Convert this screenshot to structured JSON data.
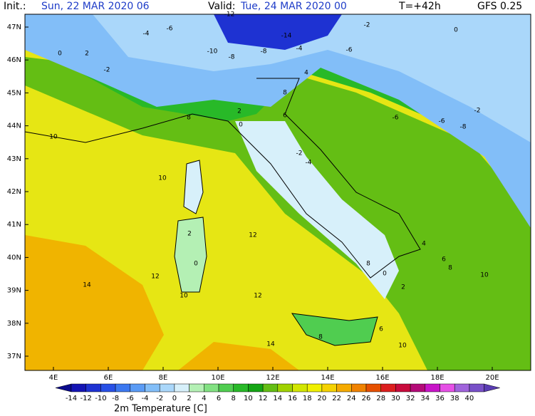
{
  "header": {
    "init_label": "Init.:",
    "init": "Sun, 22 MAR 2020  06",
    "valid_label": "Valid:",
    "valid": "Tue, 24 MAR 2020  00",
    "step": "T=+42h",
    "model": "GFS 0.25"
  },
  "map": {
    "lat_labels": [
      "47N",
      "46N",
      "45N",
      "44N",
      "43N",
      "42N",
      "41N",
      "40N",
      "39N",
      "38N",
      "37N"
    ],
    "lon_labels": [
      "4E",
      "6E",
      "8E",
      "10E",
      "12E",
      "14E",
      "16E",
      "18E",
      "20E"
    ],
    "contour_labels": [
      -12,
      -14,
      -8,
      -6,
      -4,
      -2,
      0,
      2,
      -10,
      -8,
      -6,
      -4,
      -2,
      0,
      4,
      6,
      2,
      0,
      -2,
      -4,
      -6,
      -6,
      -8,
      -2,
      8,
      8,
      10,
      10,
      12,
      14,
      12,
      10,
      2,
      0,
      6,
      8,
      8,
      10,
      12,
      14,
      10,
      8,
      4,
      6,
      2,
      0
    ]
  },
  "legend": {
    "title": "2m Temperature [C]",
    "labels": [
      -14,
      -12,
      -10,
      -8,
      -6,
      -4,
      -2,
      0,
      2,
      4,
      6,
      8,
      10,
      12,
      14,
      16,
      18,
      20,
      22,
      24,
      26,
      28,
      30,
      32,
      34,
      36,
      38,
      40
    ],
    "colors": [
      "#0a0a8c",
      "#1414b4",
      "#1e32d2",
      "#2850e6",
      "#3c78f0",
      "#5a9bf5",
      "#82bef8",
      "#aad7fa",
      "#d7f0fa",
      "#b4f0b4",
      "#82e182",
      "#50cd50",
      "#28b928",
      "#14a514",
      "#64be14",
      "#a0d200",
      "#d2e600",
      "#f0f000",
      "#f5d200",
      "#f5aa00",
      "#f08200",
      "#e65000",
      "#dc1e1e",
      "#c80a3c",
      "#b40a78",
      "#c814c8",
      "#e650e6",
      "#a064dc",
      "#7850c8",
      "#5a3cb4"
    ]
  }
}
